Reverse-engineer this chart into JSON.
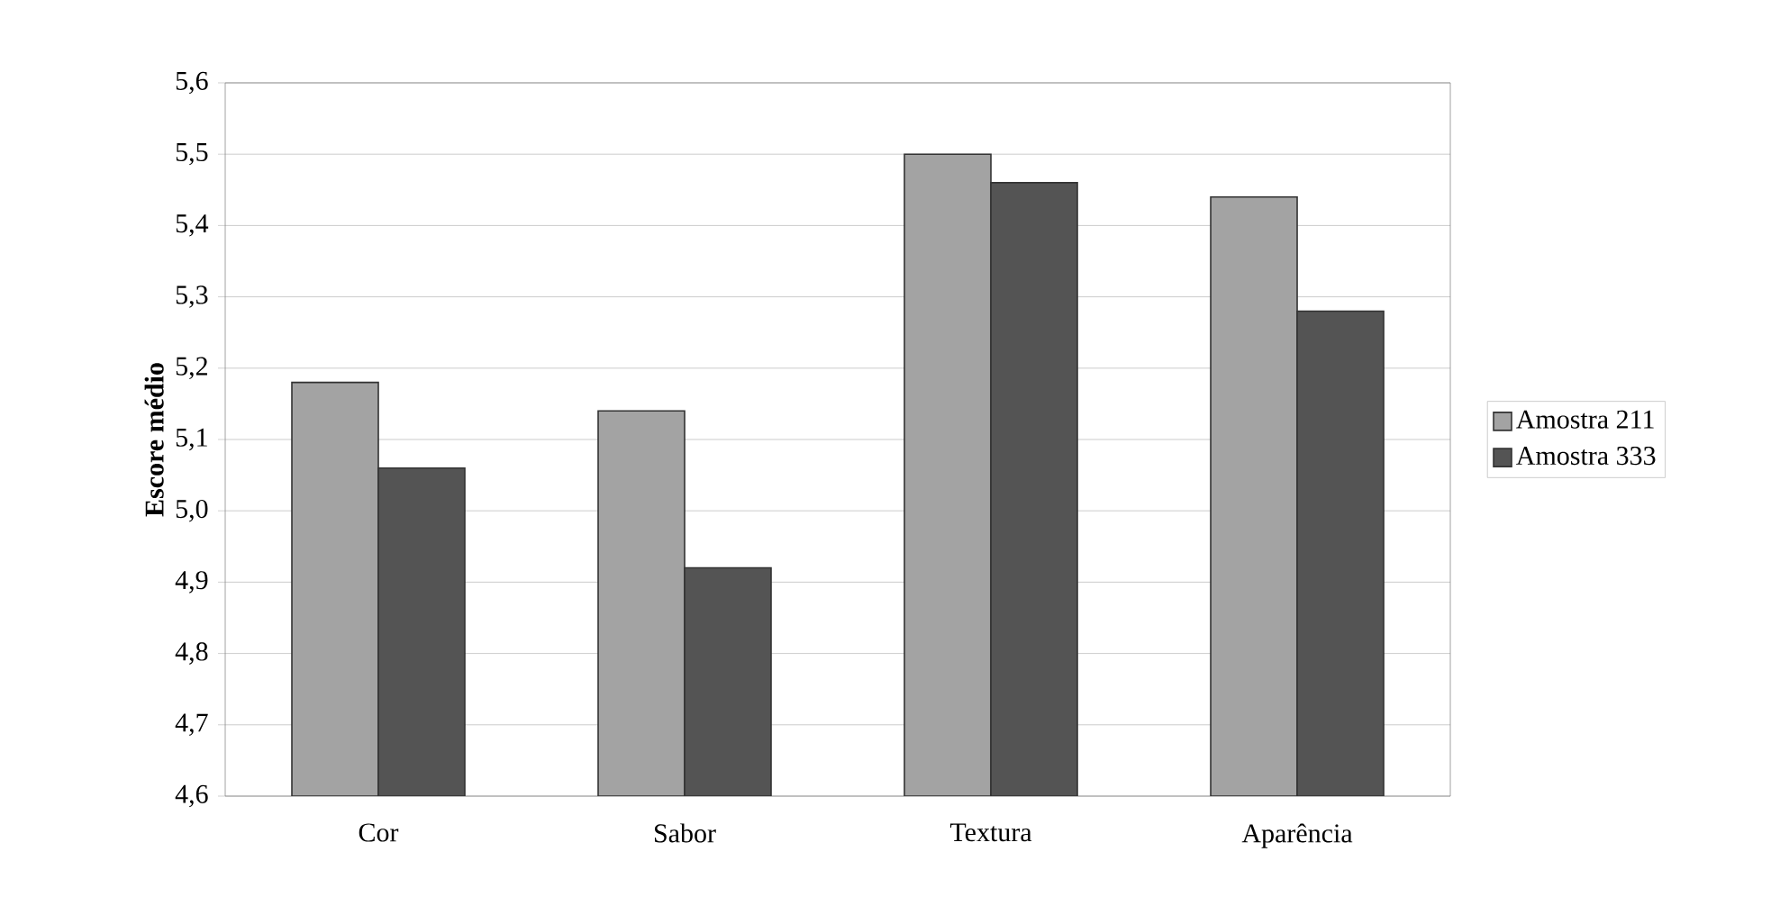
{
  "chart_data": {
    "type": "bar",
    "ylabel": "Escore médio",
    "categories": [
      "Cor",
      "Sabor",
      "Textura",
      "Aparência"
    ],
    "series": [
      {
        "name": "Amostra 211",
        "color": "#a3a3a3",
        "values": [
          5.18,
          5.14,
          5.5,
          5.44
        ]
      },
      {
        "name": "Amostra 333",
        "color": "#545454",
        "values": [
          5.06,
          4.92,
          5.46,
          5.28
        ]
      }
    ],
    "ylim": [
      4.6,
      5.6
    ],
    "yticks": [
      {
        "value": 4.6,
        "label": "4,6"
      },
      {
        "value": 4.7,
        "label": "4,7"
      },
      {
        "value": 4.8,
        "label": "4,8"
      },
      {
        "value": 4.9,
        "label": "4,9"
      },
      {
        "value": 5.0,
        "label": "5,0"
      },
      {
        "value": 5.1,
        "label": "5,1"
      },
      {
        "value": 5.2,
        "label": "5,2"
      },
      {
        "value": 5.3,
        "label": "5,3"
      },
      {
        "value": 5.4,
        "label": "5,4"
      },
      {
        "value": 5.5,
        "label": "5,5"
      },
      {
        "value": 5.6,
        "label": "5,6"
      }
    ],
    "grid": "y",
    "legend": "right"
  }
}
